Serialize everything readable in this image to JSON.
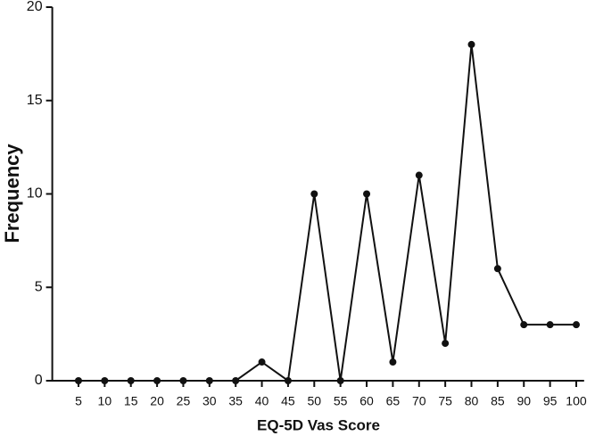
{
  "chart_data": {
    "type": "line",
    "x_label": "EQ-5D Vas Score",
    "y_label": "Frequency",
    "x": [
      5,
      10,
      15,
      20,
      25,
      30,
      35,
      40,
      45,
      50,
      55,
      60,
      65,
      70,
      75,
      80,
      85,
      90,
      95,
      100
    ],
    "series": [
      {
        "color": "#111111",
        "values": [
          0,
          0,
          0,
          0,
          0,
          0,
          0,
          1,
          0,
          10,
          0,
          10,
          1,
          11,
          2,
          18,
          6,
          3,
          3,
          3
        ]
      }
    ],
    "xlim": [
      0,
      101.5
    ],
    "xticks": [
      5,
      10,
      15,
      20,
      25,
      30,
      35,
      40,
      45,
      50,
      55,
      60,
      65,
      70,
      75,
      80,
      85,
      90,
      95,
      100
    ],
    "ylim": [
      0,
      20
    ],
    "yticks": [
      0,
      5,
      10,
      15,
      20
    ]
  }
}
